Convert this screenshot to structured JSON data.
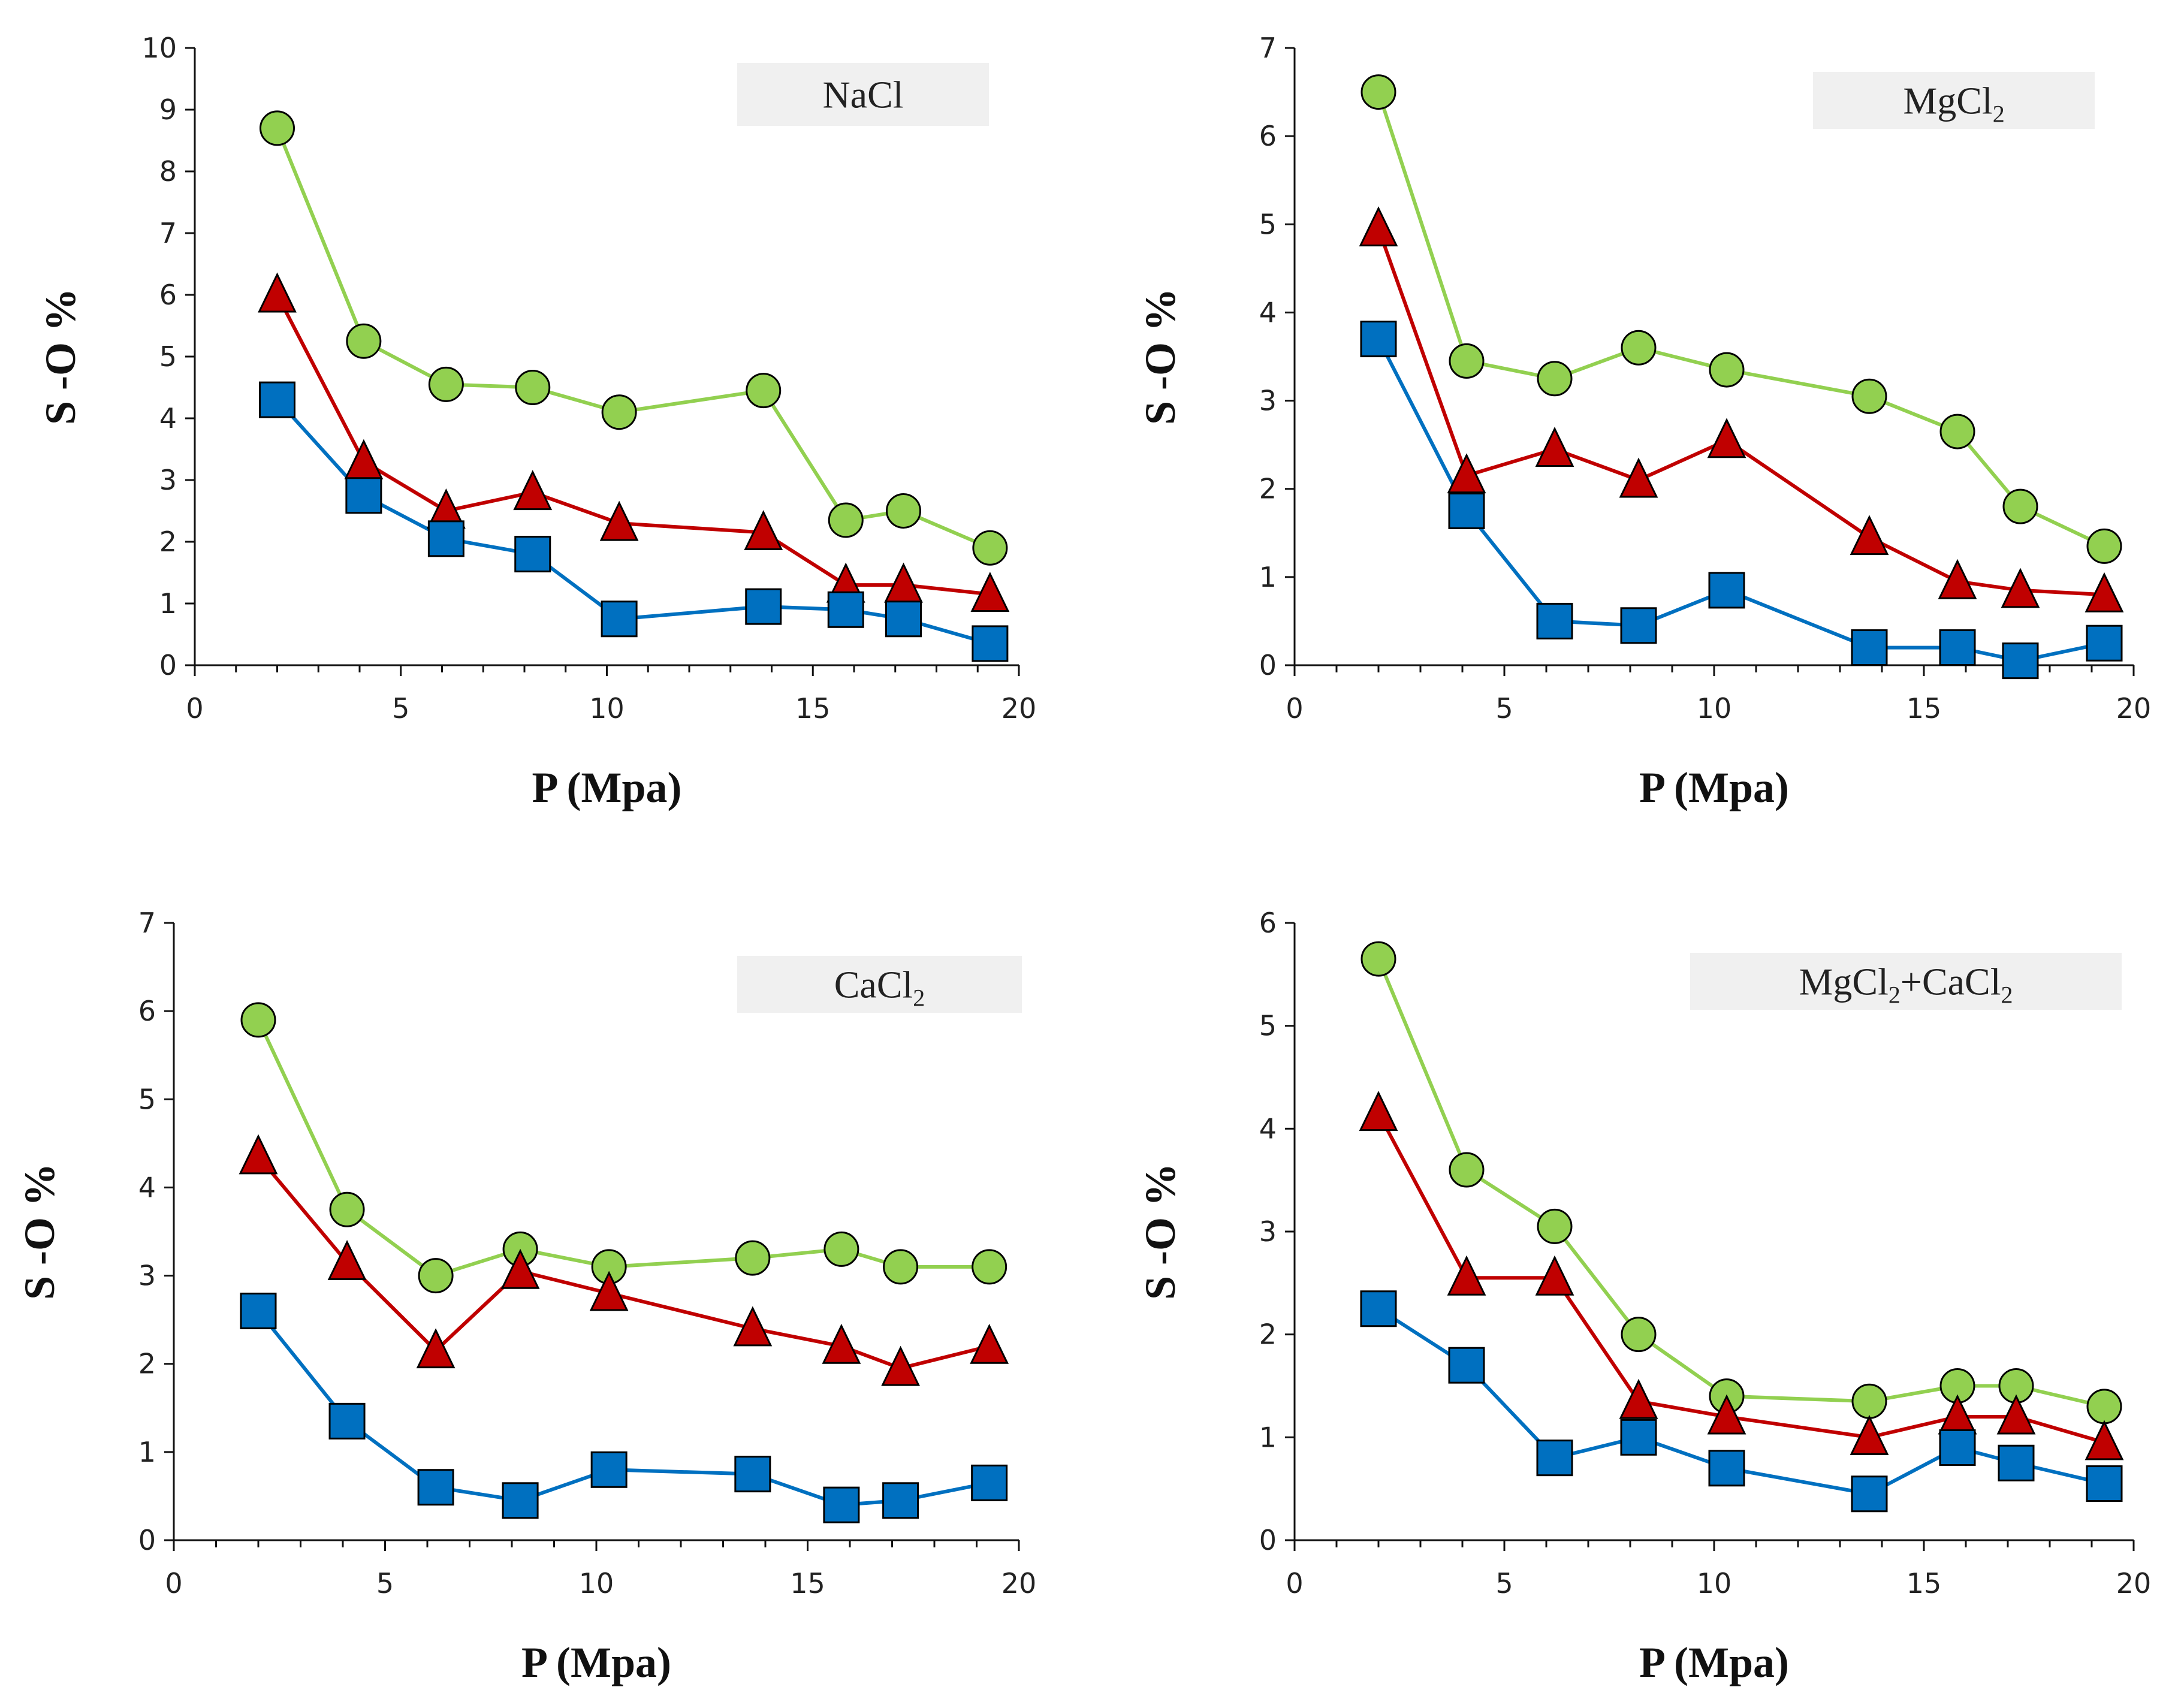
{
  "chart_data": [
    {
      "type": "line",
      "title": "NaCl",
      "title_base": "NaCl",
      "title_sub": "",
      "xlabel": "P (Mpa)",
      "ylabel": "S -O %",
      "xlim": [
        0,
        20
      ],
      "ylim": [
        0,
        10
      ],
      "xticks": [
        0,
        5,
        10,
        15,
        20
      ],
      "yticks": [
        0,
        1,
        2,
        3,
        4,
        5,
        6,
        7,
        8,
        9,
        10
      ],
      "x": [
        2.0,
        4.1,
        6.1,
        8.2,
        10.3,
        13.8,
        15.8,
        17.2,
        19.3
      ],
      "series": [
        {
          "name": "circles",
          "marker": "circle",
          "color": "#92d050",
          "values": [
            8.7,
            5.25,
            4.55,
            4.5,
            4.1,
            4.45,
            2.35,
            2.5,
            1.9
          ]
        },
        {
          "name": "triangles",
          "marker": "triangle",
          "color": "#c00000",
          "values": [
            6.0,
            3.3,
            2.5,
            2.8,
            2.3,
            2.15,
            1.3,
            1.3,
            1.15
          ]
        },
        {
          "name": "squares",
          "marker": "square",
          "color": "#0070c0",
          "values": [
            4.3,
            2.75,
            2.05,
            1.8,
            0.75,
            0.95,
            0.9,
            0.75,
            0.35
          ]
        }
      ]
    },
    {
      "type": "line",
      "title": "MgCl2",
      "title_base": "MgCl",
      "title_sub": "2",
      "xlabel": "P (Mpa)",
      "ylabel": "S -O %",
      "xlim": [
        0,
        20
      ],
      "ylim": [
        0,
        7
      ],
      "xticks": [
        0,
        5,
        10,
        15,
        20
      ],
      "yticks": [
        0,
        1,
        2,
        3,
        4,
        5,
        6,
        7
      ],
      "x": [
        2.0,
        4.1,
        6.2,
        8.2,
        10.3,
        13.7,
        15.8,
        17.3,
        19.3
      ],
      "series": [
        {
          "name": "circles",
          "marker": "circle",
          "color": "#92d050",
          "values": [
            6.5,
            3.45,
            3.25,
            3.6,
            3.35,
            3.05,
            2.65,
            1.8,
            1.35
          ]
        },
        {
          "name": "triangles",
          "marker": "triangle",
          "color": "#c00000",
          "values": [
            4.95,
            2.15,
            2.45,
            2.1,
            2.55,
            1.45,
            0.95,
            0.85,
            0.8
          ]
        },
        {
          "name": "squares",
          "marker": "square",
          "color": "#0070c0",
          "values": [
            3.7,
            1.75,
            0.5,
            0.45,
            0.85,
            0.2,
            0.2,
            0.05,
            0.25
          ]
        }
      ]
    },
    {
      "type": "line",
      "title": "CaCl2",
      "title_base": "CaCl",
      "title_sub": "2",
      "xlabel": "P (Mpa)",
      "ylabel": "S -O %",
      "xlim": [
        0,
        20
      ],
      "ylim": [
        0,
        7
      ],
      "xticks": [
        0,
        5,
        10,
        15,
        20
      ],
      "yticks": [
        0,
        1,
        2,
        3,
        4,
        5,
        6,
        7
      ],
      "x": [
        2.0,
        4.1,
        6.2,
        8.2,
        10.3,
        13.7,
        15.8,
        17.2,
        19.3
      ],
      "series": [
        {
          "name": "circles",
          "marker": "circle",
          "color": "#92d050",
          "values": [
            5.9,
            3.75,
            3.0,
            3.3,
            3.1,
            3.2,
            3.3,
            3.1,
            3.1
          ]
        },
        {
          "name": "triangles",
          "marker": "triangle",
          "color": "#c00000",
          "values": [
            4.35,
            3.15,
            2.15,
            3.05,
            2.8,
            2.4,
            2.2,
            1.95,
            2.2
          ]
        },
        {
          "name": "squares",
          "marker": "square",
          "color": "#0070c0",
          "values": [
            2.6,
            1.35,
            0.6,
            0.45,
            0.8,
            0.75,
            0.4,
            0.45,
            0.65
          ]
        }
      ]
    },
    {
      "type": "line",
      "title": "MgCl2+CaCl2",
      "title_base": "MgCl",
      "title_sub": "2",
      "title_mid": "+CaCl",
      "title_sub2": "2",
      "xlabel": "P (Mpa)",
      "ylabel": "S -O %",
      "xlim": [
        0,
        20
      ],
      "ylim": [
        0,
        6
      ],
      "xticks": [
        0,
        5,
        10,
        15,
        20
      ],
      "yticks": [
        0,
        1,
        2,
        3,
        4,
        5,
        6
      ],
      "x": [
        2.0,
        4.1,
        6.2,
        8.2,
        10.3,
        13.7,
        15.8,
        17.2,
        19.3
      ],
      "series": [
        {
          "name": "circles",
          "marker": "circle",
          "color": "#92d050",
          "values": [
            5.65,
            3.6,
            3.05,
            2.0,
            1.4,
            1.35,
            1.5,
            1.5,
            1.3
          ]
        },
        {
          "name": "triangles",
          "marker": "triangle",
          "color": "#c00000",
          "values": [
            4.15,
            2.55,
            2.55,
            1.35,
            1.2,
            1.0,
            1.2,
            1.2,
            0.95
          ]
        },
        {
          "name": "squares",
          "marker": "square",
          "color": "#0070c0",
          "values": [
            2.25,
            1.7,
            0.8,
            1.0,
            0.7,
            0.45,
            0.9,
            0.75,
            0.55
          ]
        }
      ]
    }
  ]
}
